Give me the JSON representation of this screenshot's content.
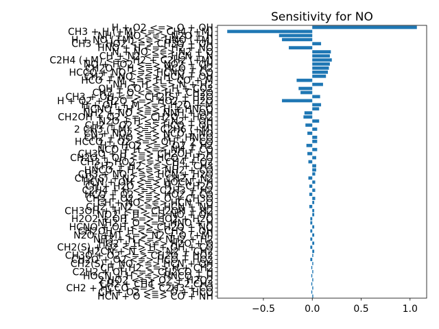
{
  "chart_data": {
    "type": "bar",
    "orientation": "horizontal",
    "title": "Sensitivity for NO",
    "xlabel": "",
    "ylabel": "",
    "xlim": [
      -0.97,
      1.17
    ],
    "xticks": [
      -0.5,
      0.0,
      0.5,
      1.0
    ],
    "xtick_labels": [
      "−0.5",
      "0.0",
      "0.5",
      "1.0"
    ],
    "bar_color": "#1f77b4",
    "grid": false,
    "categories": [
      "H + O2 <=> O + OH",
      "CH3 + H (+M) <=> CH4 (+M)",
      "NH + NO <=> N2O + H",
      "H + NO (+M) <=> HNO (+M)",
      "CH3 + HO2 <=> CH3O + OH",
      "HNO + H <=> H2 + NO",
      "N + NO <=> N2 + O",
      "CH + N2 <=> HCN + N",
      "C2H4 (+M) <=> H2 + C2H2 (+M)",
      "NO + HO2 <=> NO2 + OH",
      "CH2O + H <=> HCO + H2",
      "HCCO + NO <=> HCNO + CO",
      "CH2 + NO <=> HCN + OH",
      "HCO + M <=> H + CO + M",
      "NH + H <=> N + H2",
      "OH + CO <=> H + CO2",
      "CH3 + O <=> H + CH2O",
      "CH3 + OH <=> CH2(S) + H2O",
      "H + O2 + H2O <=> HO2 + H2O",
      "H + OH + M <=> H2O + M",
      "HCNO + H <=> H + HNCO",
      "NH2 + NO <=> NNH + OH",
      "CH2OH + O2 <=> CH2O + HO2",
      "N2O + H <=> N2 + OH",
      "CH2 + O2 <=> HCO + OH",
      "2 CH3 (+M) <=> C2H6 (+M)",
      "CN + NO2 <=> NCO + NO",
      "CH2 + NO <=> H + HNCO",
      "HCCO + O2 <=> OH + 2 CO",
      "H + HO2 <=> O2 + H2",
      "NCO + H <=> NH + CO",
      "CH3O + H <=> CH2OH + H",
      "CH2O + OH <=> HCO + H2O",
      "CH3 + HO2 <=> CH4 + O2",
      "CH2 + H2 <=> H + CH3",
      "HNCO + H <=> NH2 + CO",
      "CH3 + NO <=> HCN + H2O",
      "CH2(S) + N2 <=> CH2 + N2",
      "HCN + OH <=> HOCN + H",
      "CH + H2O <=> H + CH2O",
      "C2H4 + H <=> C2H3 + H2",
      "HCO + O2 <=> HO2 + CO",
      "CH3 + O2 <=> O + CH3O",
      "CH + NO <=> HCN + O",
      "CH2 + N2 <=> HCN + NH",
      "CH3OH + H <=> CH2OH + H2",
      "NO2 + H <=> NO + OH",
      "H2O2 + OH <=> HO2 + H2O",
      "NH2 + O <=> HNO + H",
      "HCNO + OH <=> CH2O + NO",
      "CH2OH + H <=> CH3 + OH",
      "N2O (+M) <=> N2 + O (+M)",
      "NH3 + H <=> NH2 + H2",
      "HO2 + H <=> H2O + O",
      "CH2(S) + O2 <=> H + OH + CO",
      "H2CN + N <=> N2 + CH2",
      "CH3O + O2 <=> CH2O + HO2",
      "CH2O + O2 <=> HCO + HO2",
      "CH2(S) + NO <=> HCN + OH",
      "CH + H2 <=> H + CH2",
      "C2H2 + OH <=> CH2CO + H",
      "HOCN + H <=> HNCO + H",
      "2 HO2 <=> O2 + H2O2",
      "CH2 + CH4 <=> 2 CH3",
      "CH2 + HCCO <=> C2H3 + CO",
      "CH + O2 <=> O + HCO",
      "HCN + O <=> CO + NH"
    ],
    "values": [
      1.07,
      -0.87,
      -0.34,
      -0.31,
      0.09,
      -0.24,
      0.19,
      0.18,
      0.2,
      0.18,
      0.17,
      0.16,
      0.14,
      -0.16,
      0.11,
      -0.14,
      -0.12,
      0.08,
      -0.31,
      0.09,
      0.07,
      -0.08,
      -0.09,
      0.07,
      -0.07,
      0.05,
      -0.05,
      0.05,
      0.05,
      -0.06,
      0.05,
      -0.05,
      0.04,
      -0.04,
      0.04,
      0.04,
      0.03,
      -0.04,
      0.03,
      -0.03,
      0.03,
      -0.03,
      0.03,
      0.02,
      -0.03,
      0.02,
      0.02,
      -0.02,
      -0.02,
      0.02,
      -0.02,
      0.02,
      -0.02,
      0.02,
      -0.02,
      0.02,
      0.01,
      -0.02,
      0.01,
      -0.01,
      0.01,
      -0.01,
      0.01,
      -0.01,
      0.01,
      -0.01,
      0.01
    ]
  }
}
